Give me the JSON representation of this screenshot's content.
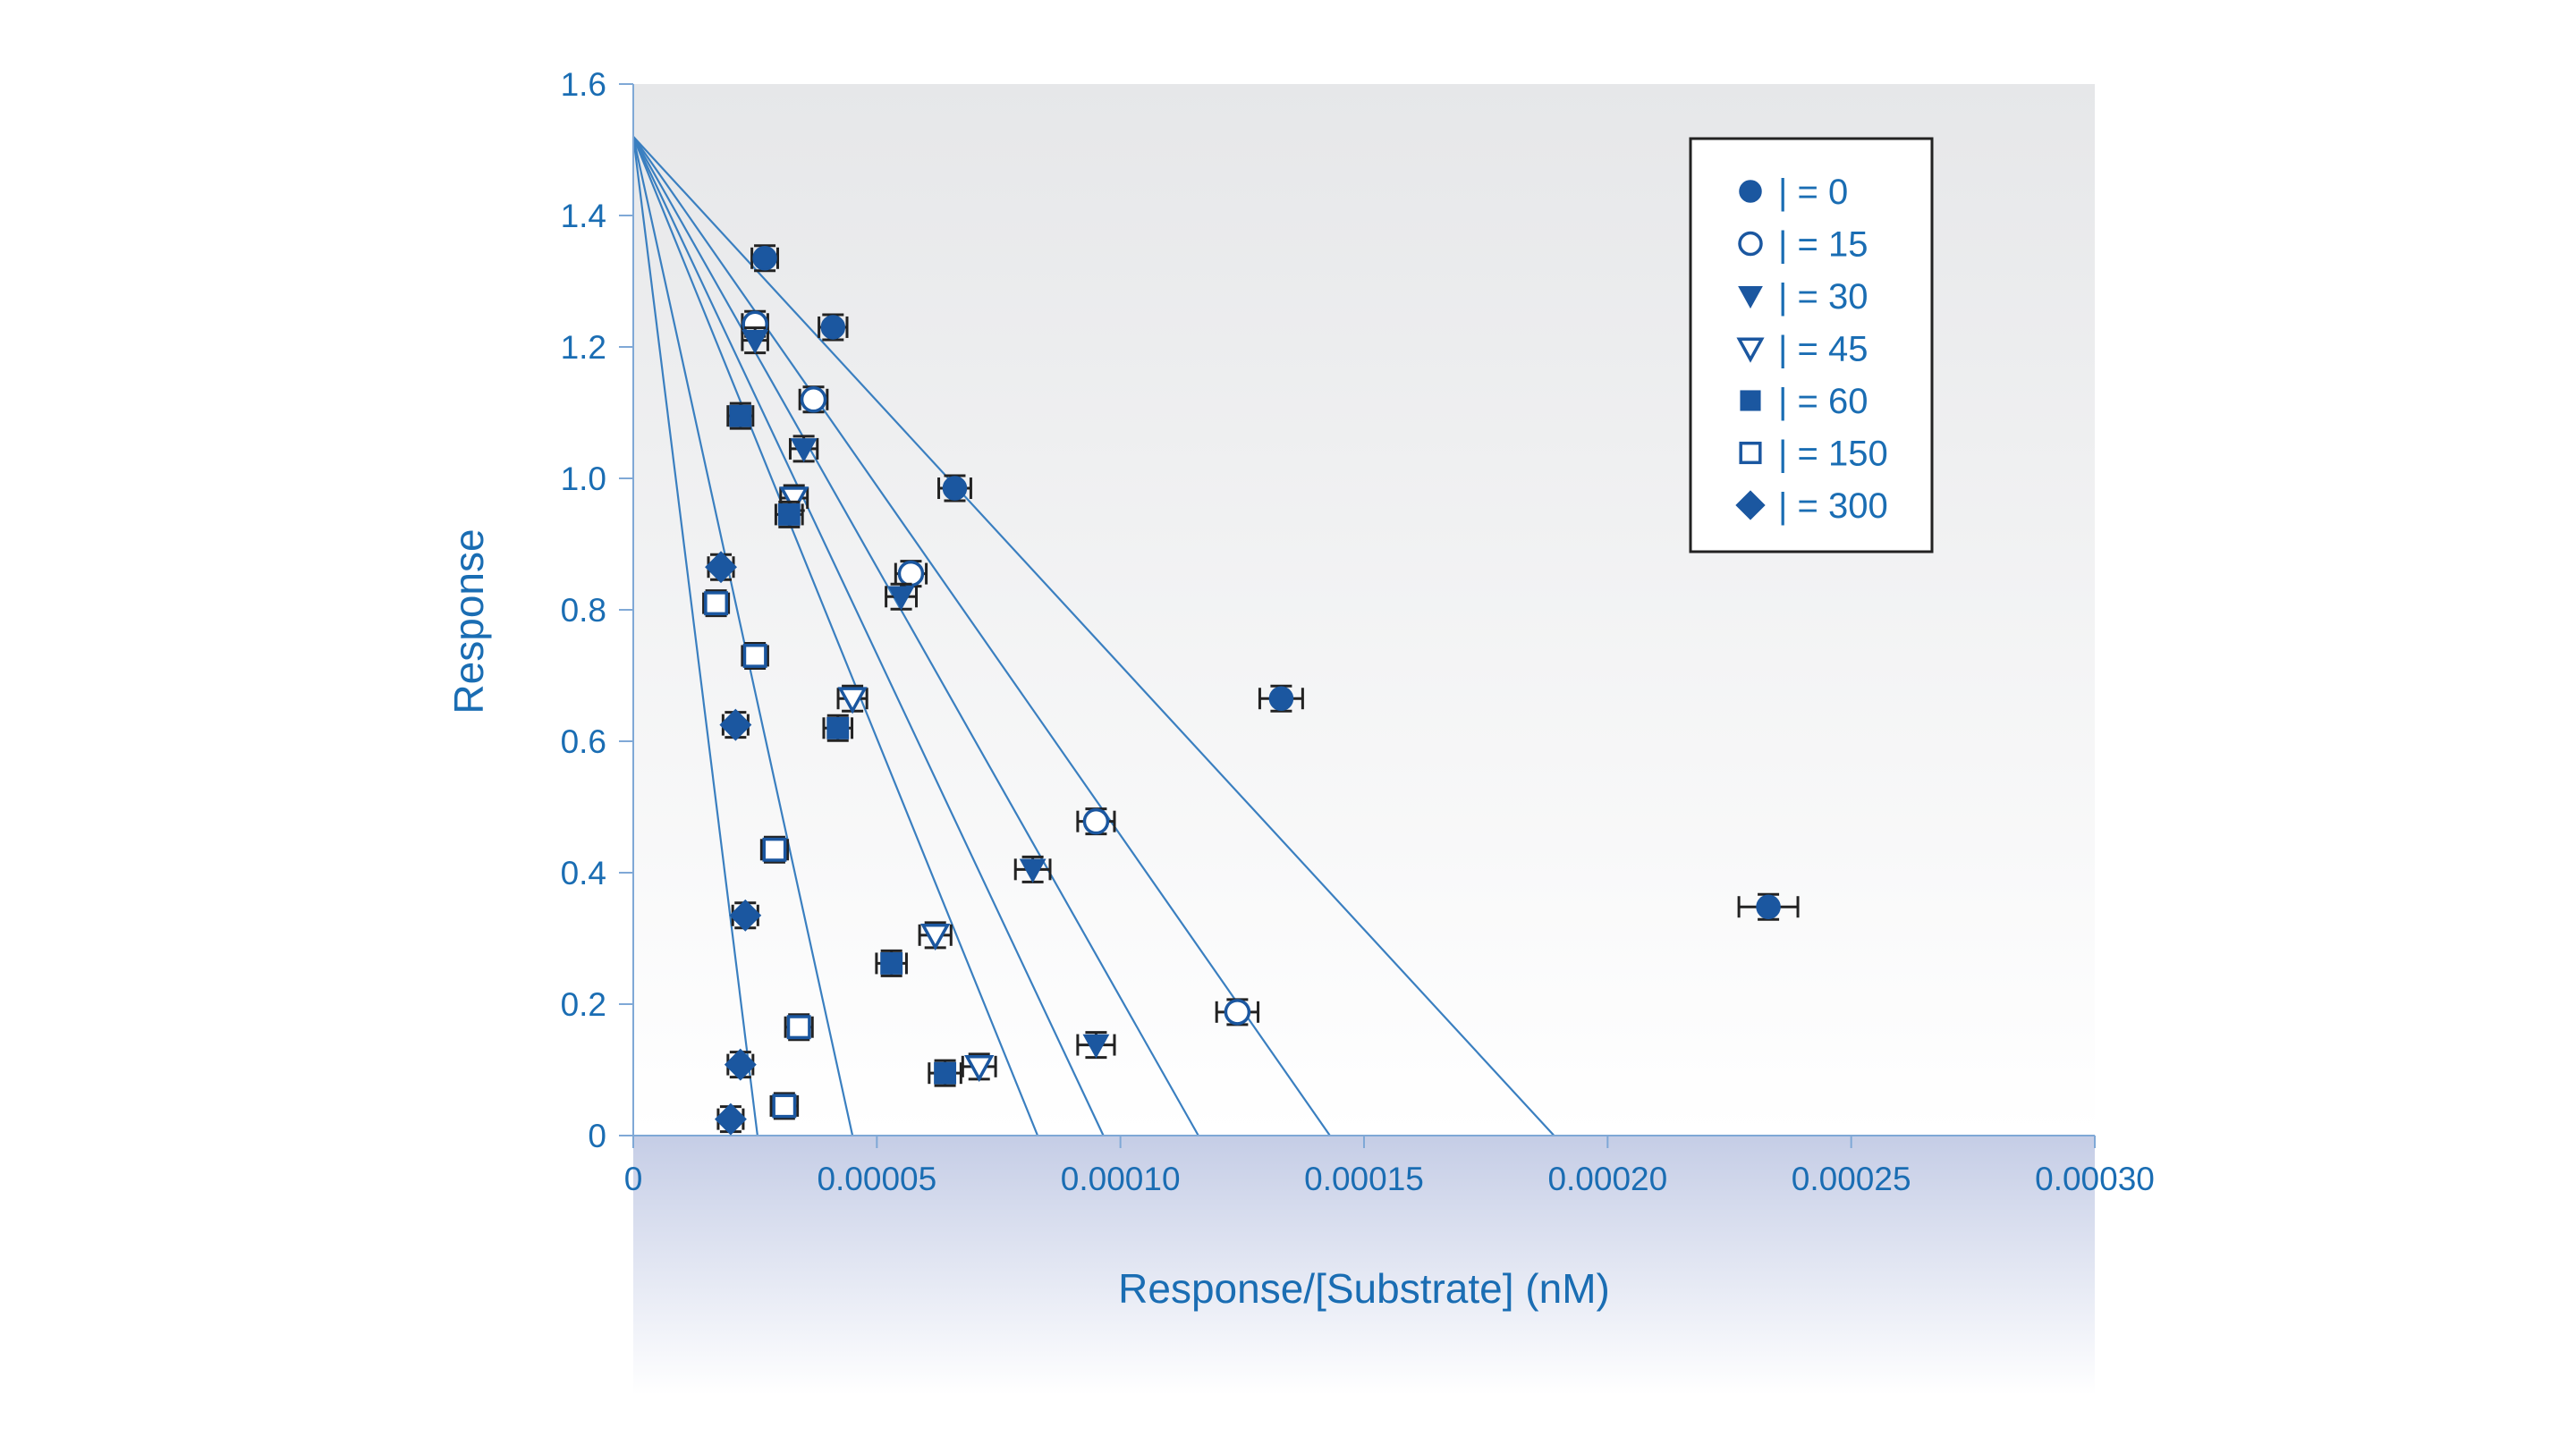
{
  "chart_data": {
    "type": "scatter",
    "title": "",
    "xlabel": "Response/[Substrate] (nM)",
    "ylabel": "Response",
    "xlim": [
      0,
      0.0003
    ],
    "ylim": [
      0,
      1.6
    ],
    "x_ticks": [
      0,
      5e-05,
      0.0001,
      0.00015,
      0.0002,
      0.00025,
      0.0003
    ],
    "x_tick_labels": [
      "0",
      "0.00005",
      "0.00010",
      "0.00015",
      "0.00020",
      "0.00025",
      "0.00030"
    ],
    "y_ticks": [
      0,
      0.2,
      0.4,
      0.6,
      0.8,
      1.0,
      1.2,
      1.4,
      1.6
    ],
    "y_tick_labels": [
      "0",
      "0.2",
      "0.4",
      "0.6",
      "0.8",
      "1.0",
      "1.2",
      "1.4",
      "1.6"
    ],
    "grid": false,
    "legend_position": "top-right",
    "colors": {
      "accent": "#1a6db3",
      "marker": "#1b57a0",
      "errorbar": "#222222",
      "line": "#3a7fc0"
    },
    "series": [
      {
        "name": "| = 0",
        "marker": "filled-circle",
        "points": [
          {
            "x": 2.7e-05,
            "y": 1.335
          },
          {
            "x": 4.1e-05,
            "y": 1.23
          },
          {
            "x": 6.6e-05,
            "y": 0.985
          },
          {
            "x": 0.000133,
            "y": 0.665
          },
          {
            "x": 0.000233,
            "y": 0.348
          }
        ],
        "fit": {
          "intercept": 1.52,
          "x_intercept": 0.000189
        }
      },
      {
        "name": "| = 15",
        "marker": "open-circle",
        "points": [
          {
            "x": 2.5e-05,
            "y": 1.235
          },
          {
            "x": 3.7e-05,
            "y": 1.12
          },
          {
            "x": 5.7e-05,
            "y": 0.855
          },
          {
            "x": 9.5e-05,
            "y": 0.478
          },
          {
            "x": 0.000124,
            "y": 0.188
          }
        ],
        "fit": {
          "intercept": 1.52,
          "x_intercept": 0.000143
        }
      },
      {
        "name": "| = 30",
        "marker": "filled-triangle-down",
        "points": [
          {
            "x": 2.5e-05,
            "y": 1.21
          },
          {
            "x": 3.5e-05,
            "y": 1.045
          },
          {
            "x": 5.5e-05,
            "y": 0.82
          },
          {
            "x": 8.2e-05,
            "y": 0.405
          },
          {
            "x": 9.5e-05,
            "y": 0.138
          }
        ],
        "fit": {
          "intercept": 1.52,
          "x_intercept": 0.000116
        }
      },
      {
        "name": "| = 45",
        "marker": "open-triangle-down",
        "points": [
          {
            "x": 3.3e-05,
            "y": 0.97
          },
          {
            "x": 4.5e-05,
            "y": 0.665
          },
          {
            "x": 6.2e-05,
            "y": 0.305
          },
          {
            "x": 7.1e-05,
            "y": 0.105
          }
        ],
        "fit": {
          "intercept": 1.52,
          "x_intercept": 9.65e-05
        }
      },
      {
        "name": "| = 60",
        "marker": "filled-square",
        "points": [
          {
            "x": 2.2e-05,
            "y": 1.095
          },
          {
            "x": 3.2e-05,
            "y": 0.945
          },
          {
            "x": 4.2e-05,
            "y": 0.62
          },
          {
            "x": 5.3e-05,
            "y": 0.262
          },
          {
            "x": 6.4e-05,
            "y": 0.095
          }
        ],
        "fit": {
          "intercept": 1.52,
          "x_intercept": 8.3e-05
        }
      },
      {
        "name": "| = 150",
        "marker": "open-square",
        "points": [
          {
            "x": 1.7e-05,
            "y": 0.81
          },
          {
            "x": 2.5e-05,
            "y": 0.73
          },
          {
            "x": 2.9e-05,
            "y": 0.435
          },
          {
            "x": 3.4e-05,
            "y": 0.165
          },
          {
            "x": 3.1e-05,
            "y": 0.045
          }
        ],
        "fit": {
          "intercept": 1.52,
          "x_intercept": 4.5e-05
        }
      },
      {
        "name": "| = 300",
        "marker": "filled-diamond",
        "points": [
          {
            "x": 1.8e-05,
            "y": 0.865
          },
          {
            "x": 2.1e-05,
            "y": 0.625
          },
          {
            "x": 2.3e-05,
            "y": 0.335
          },
          {
            "x": 2.2e-05,
            "y": 0.108
          },
          {
            "x": 2e-05,
            "y": 0.025
          }
        ],
        "fit": {
          "intercept": 1.52,
          "x_intercept": 2.55e-05
        }
      }
    ]
  }
}
